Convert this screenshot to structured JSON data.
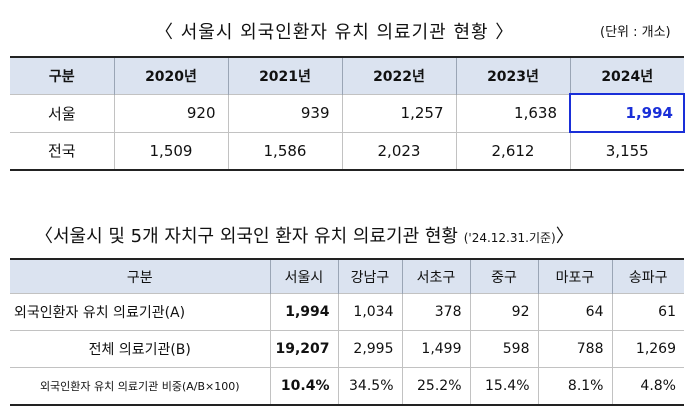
{
  "title1": "〈 서울시 외국인환자 유치 의료기관 현황 〉",
  "unit": "(단위 : 개소)",
  "table1": {
    "headers": [
      "구분",
      "2020년",
      "2021년",
      "2022년",
      "2023년",
      "2024년"
    ],
    "rows": [
      {
        "label": "서울",
        "values": [
          "920",
          "939",
          "1,257",
          "1,638",
          "1,994"
        ]
      },
      {
        "label": "전국",
        "values": [
          "1,509",
          "1,586",
          "2,023",
          "2,612",
          "3,155"
        ]
      }
    ],
    "highlight_color": "#1a2fd8"
  },
  "title2": "〈서울시 및 5개 자치구 외국인 환자 유치 의료기관 현황",
  "title2_basis": "('24.12.31.기준)",
  "title2_close": "〉",
  "table2": {
    "headers": [
      "구분",
      "서울시",
      "강남구",
      "서초구",
      "중구",
      "마포구",
      "송파구"
    ],
    "rows": [
      {
        "label": "외국인환자 유치 의료기관(A)",
        "values": [
          "1,994",
          "1,034",
          "378",
          "92",
          "64",
          "61"
        ]
      },
      {
        "label": "전체 의료기관(B)",
        "values": [
          "19,207",
          "2,995",
          "1,499",
          "598",
          "788",
          "1,269"
        ]
      },
      {
        "label": "외국인환자 유치 의료기관 비중(A/B×100)",
        "values": [
          "10.4%",
          "34.5%",
          "25.2%",
          "15.4%",
          "8.1%",
          "4.8%"
        ]
      }
    ]
  },
  "colors": {
    "header_bg": "#dbe3f0",
    "border": "#222222"
  }
}
